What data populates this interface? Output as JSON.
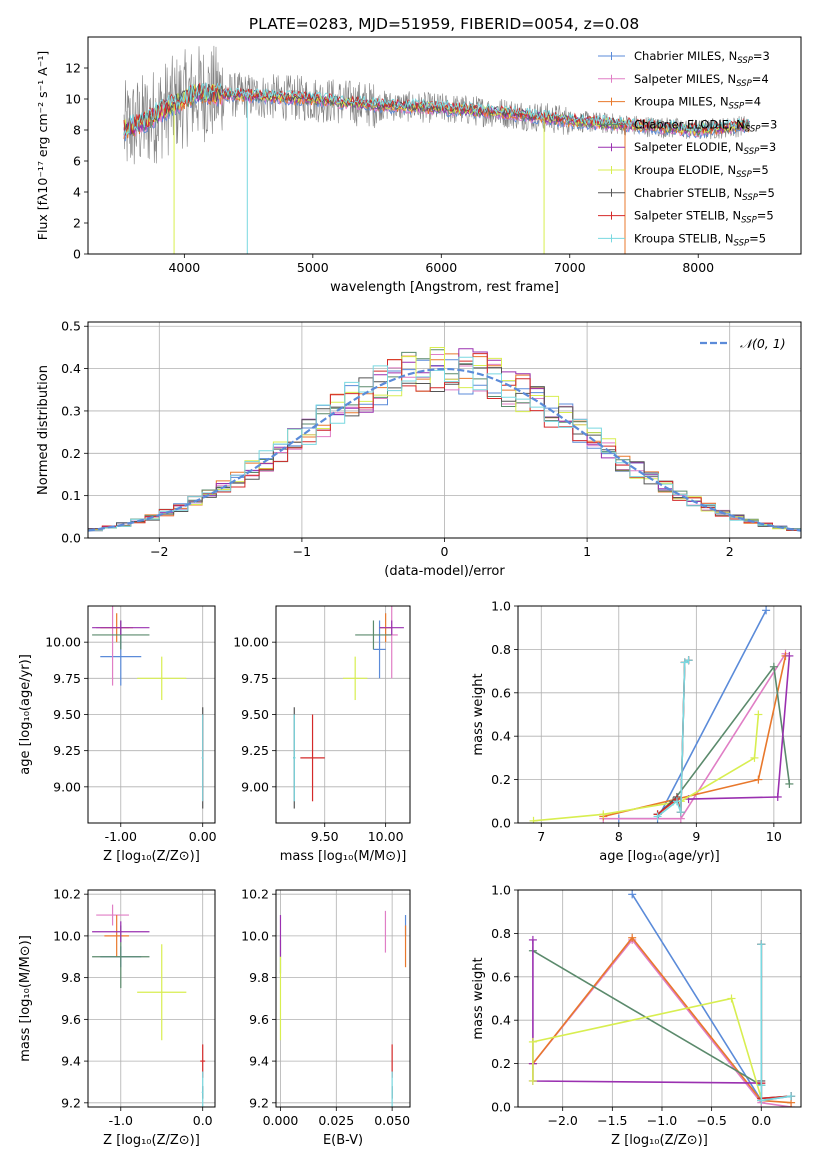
{
  "figure_title": "PLATE=0283, MJD=51959, FIBERID=0054, z=0.08",
  "colors": {
    "Chabrier MILES": "#5b8bd9",
    "Salpeter MILES": "#e07ec5",
    "Kroupa MILES": "#e8782c",
    "Chabrier ELODIE": "#5b8a6c",
    "Salpeter ELODIE": "#9a30b0",
    "Kroupa ELODIE": "#d8ee50",
    "Chabrier STELIB": "#555555",
    "Salpeter STELIB": "#d42a2a",
    "Kroupa STELIB": "#79d8e0",
    "spectrum": "#808080",
    "gaussian": "#5b8bd9"
  },
  "chart_data": [
    {
      "id": "spectrum",
      "type": "line",
      "xlabel": "wavelength [Angstrom, rest frame]",
      "ylabel": "Flux [fλ10⁻¹⁷ erg cm⁻² s⁻¹ A⁻¹]",
      "xlim": [
        3250,
        8800
      ],
      "ylim": [
        0,
        14
      ],
      "xticks": [
        4000,
        5000,
        6000,
        7000,
        8000
      ],
      "yticks": [
        0,
        2,
        4,
        6,
        8,
        10,
        12
      ],
      "grid": false,
      "legend_position": "top-right",
      "legend": [
        "Chabrier MILES, N_SSP=3",
        "Salpeter MILES, N_SSP=4",
        "Kroupa MILES, N_SSP=4",
        "Chabrier ELODIE, N_SSP=3",
        "Salpeter ELODIE, N_SSP=3",
        "Kroupa ELODIE, N_SSP=5",
        "Chabrier STELIB, N_SSP=5",
        "Salpeter STELIB, N_SSP=5",
        "Kroupa STELIB, N_SSP=5"
      ],
      "continuum": [
        [
          3530,
          8.0
        ],
        [
          3700,
          8.6
        ],
        [
          3900,
          9.6
        ],
        [
          4100,
          10.4
        ],
        [
          4500,
          10.2
        ],
        [
          5000,
          10.0
        ],
        [
          5500,
          9.6
        ],
        [
          6000,
          9.4
        ],
        [
          6500,
          9.1
        ],
        [
          7000,
          8.6
        ],
        [
          7500,
          8.3
        ],
        [
          8000,
          8.0
        ],
        [
          8400,
          8.3
        ]
      ],
      "dropouts": [
        {
          "model": "Kroupa ELODIE",
          "x": 3920
        },
        {
          "model": "Kroupa STELIB",
          "x": 4490
        },
        {
          "model": "Kroupa ELODIE",
          "x": 6800
        },
        {
          "model": "Kroupa MILES",
          "x": 7430
        }
      ]
    },
    {
      "id": "residuals",
      "type": "line",
      "xlabel": "(data-model)/error",
      "ylabel": "Normed distribution",
      "xlim": [
        -2.5,
        2.5
      ],
      "ylim": [
        0,
        0.51
      ],
      "xticks": [
        -2,
        -1,
        0,
        1,
        2
      ],
      "yticks": [
        0.0,
        0.1,
        0.2,
        0.3,
        0.4,
        0.5
      ],
      "grid": true,
      "legend_position": "top-right",
      "legend": [
        "𝒩(0, 1)"
      ],
      "bin_width": 0.1,
      "gaussian": {
        "mean": 0,
        "sigma": 1
      }
    },
    {
      "id": "age_vs_Z",
      "type": "scatter",
      "xlabel": "Z [log₁₀(Z/Z⊙)]",
      "ylabel": "age  [log₁₀(age/yr)]",
      "xlim": [
        -1.4,
        0.15
      ],
      "ylim": [
        8.75,
        10.25
      ],
      "xticks": [
        -1,
        0
      ],
      "yticks": [
        9.0,
        9.25,
        9.5,
        9.75,
        10.0
      ],
      "grid": true,
      "points": [
        {
          "model": "Chabrier MILES",
          "x": -1.0,
          "y": 9.9,
          "xerr": 0.25,
          "yerr": 0.2
        },
        {
          "model": "Salpeter MILES",
          "x": -1.1,
          "y": 10.1,
          "xerr": 0.2,
          "yerr": 0.4
        },
        {
          "model": "Kroupa MILES",
          "x": -1.05,
          "y": 10.1,
          "xerr": 0.2,
          "yerr": 0.1
        },
        {
          "model": "Chabrier ELODIE",
          "x": -1.0,
          "y": 10.05,
          "xerr": 0.35,
          "yerr": 0.1
        },
        {
          "model": "Salpeter ELODIE",
          "x": -1.0,
          "y": 10.1,
          "xerr": 0.35,
          "yerr": 0.05
        },
        {
          "model": "Kroupa ELODIE",
          "x": -0.5,
          "y": 9.75,
          "xerr": 0.3,
          "yerr": 0.15
        },
        {
          "model": "Chabrier STELIB",
          "x": 0.0,
          "y": 9.2,
          "xerr": 0.01,
          "yerr": 0.35
        },
        {
          "model": "Salpeter STELIB",
          "x": 0.0,
          "y": 9.2,
          "xerr": 0.01,
          "yerr": 0.3
        },
        {
          "model": "Kroupa STELIB",
          "x": 0.0,
          "y": 9.2,
          "xerr": 0.01,
          "yerr": 0.3
        }
      ]
    },
    {
      "id": "age_vs_mass",
      "type": "scatter",
      "xlabel": "mass [log₁₀(M/M⊙)]",
      "ylabel": "",
      "xlim": [
        9.1,
        10.2
      ],
      "ylim": [
        8.75,
        10.25
      ],
      "xticks": [
        9.5,
        10.0
      ],
      "yticks": [
        9.0,
        9.25,
        9.5,
        9.75,
        10.0
      ],
      "grid": true,
      "points": [
        {
          "model": "Chabrier MILES",
          "x": 9.95,
          "y": 9.95,
          "xerr": 0.05,
          "yerr": 0.2
        },
        {
          "model": "Salpeter MILES",
          "x": 10.05,
          "y": 10.05,
          "xerr": 0.05,
          "yerr": 0.3
        },
        {
          "model": "Kroupa MILES",
          "x": 10.0,
          "y": 10.1,
          "xerr": 0.05,
          "yerr": 0.1
        },
        {
          "model": "Chabrier ELODIE",
          "x": 9.9,
          "y": 10.05,
          "xerr": 0.15,
          "yerr": 0.1
        },
        {
          "model": "Salpeter ELODIE",
          "x": 10.05,
          "y": 10.1,
          "xerr": 0.1,
          "yerr": 0.05
        },
        {
          "model": "Kroupa ELODIE",
          "x": 9.75,
          "y": 9.75,
          "xerr": 0.1,
          "yerr": 0.15
        },
        {
          "model": "Chabrier STELIB",
          "x": 9.25,
          "y": 9.2,
          "xerr": 0.01,
          "yerr": 0.35
        },
        {
          "model": "Salpeter STELIB",
          "x": 9.4,
          "y": 9.2,
          "xerr": 0.1,
          "yerr": 0.3
        },
        {
          "model": "Kroupa STELIB",
          "x": 9.25,
          "y": 9.2,
          "xerr": 0.01,
          "yerr": 0.3
        }
      ]
    },
    {
      "id": "weight_vs_age",
      "type": "line",
      "xlabel": "age  [log₁₀(age/yr)]",
      "ylabel": "mass weight",
      "xlim": [
        6.7,
        10.35
      ],
      "ylim": [
        0,
        1.0
      ],
      "xticks": [
        7,
        8,
        9,
        10
      ],
      "yticks": [
        0.0,
        0.2,
        0.4,
        0.6,
        0.8,
        1.0
      ],
      "grid": true,
      "series": [
        {
          "model": "Chabrier MILES",
          "x": [
            8.0,
            8.5,
            9.9
          ],
          "y": [
            0.02,
            0.02,
            0.98
          ]
        },
        {
          "model": "Salpeter MILES",
          "x": [
            7.8,
            8.8,
            10.15
          ],
          "y": [
            0.02,
            0.02,
            0.78
          ]
        },
        {
          "model": "Kroupa MILES",
          "x": [
            7.8,
            9.8,
            10.15
          ],
          "y": [
            0.03,
            0.2,
            0.77
          ]
        },
        {
          "model": "Chabrier ELODIE",
          "x": [
            8.7,
            10.0,
            10.2
          ],
          "y": [
            0.1,
            0.72,
            0.18
          ]
        },
        {
          "model": "Salpeter ELODIE",
          "x": [
            8.9,
            10.05,
            10.2
          ],
          "y": [
            0.11,
            0.12,
            0.77
          ]
        },
        {
          "model": "Kroupa ELODIE",
          "x": [
            6.9,
            7.8,
            8.8,
            9.75,
            9.8
          ],
          "y": [
            0.01,
            0.04,
            0.1,
            0.3,
            0.5
          ]
        },
        {
          "model": "Chabrier STELIB",
          "x": [
            8.5,
            8.75,
            8.8,
            8.85,
            8.9
          ],
          "y": [
            0.04,
            0.12,
            0.05,
            0.74,
            0.75
          ]
        },
        {
          "model": "Salpeter STELIB",
          "x": [
            8.5,
            8.75,
            8.8,
            8.85,
            8.9
          ],
          "y": [
            0.04,
            0.11,
            0.05,
            0.74,
            0.75
          ]
        },
        {
          "model": "Kroupa STELIB",
          "x": [
            8.5,
            8.75,
            8.8,
            8.85,
            8.9
          ],
          "y": [
            0.03,
            0.1,
            0.05,
            0.74,
            0.75
          ]
        }
      ]
    },
    {
      "id": "mass_vs_Z",
      "type": "scatter",
      "xlabel": "Z [log₁₀(Z/Z⊙)]",
      "ylabel": "mass [log₁₀(M/M⊙)]",
      "xlim": [
        -1.4,
        0.15
      ],
      "ylim": [
        9.18,
        10.22
      ],
      "xticks": [
        -1,
        0
      ],
      "yticks": [
        9.2,
        9.4,
        9.6,
        9.8,
        10.0,
        10.2
      ],
      "grid": true,
      "points": [
        {
          "model": "Chabrier MILES",
          "x": -1.0,
          "y": 9.9,
          "xerr": 0.25,
          "yerr": 0.05
        },
        {
          "model": "Salpeter MILES",
          "x": -1.1,
          "y": 10.1,
          "xerr": 0.2,
          "yerr": 0.05
        },
        {
          "model": "Kroupa MILES",
          "x": -1.05,
          "y": 10.0,
          "xerr": 0.15,
          "yerr": 0.1
        },
        {
          "model": "Chabrier ELODIE",
          "x": -1.0,
          "y": 9.9,
          "xerr": 0.35,
          "yerr": 0.15
        },
        {
          "model": "Salpeter ELODIE",
          "x": -1.0,
          "y": 10.02,
          "xerr": 0.35,
          "yerr": 0.05
        },
        {
          "model": "Kroupa ELODIE",
          "x": -0.5,
          "y": 9.73,
          "xerr": 0.3,
          "yerr": 0.23
        },
        {
          "model": "Chabrier STELIB",
          "x": 0.0,
          "y": 9.25,
          "xerr": 0.01,
          "yerr": 0.03
        },
        {
          "model": "Salpeter STELIB",
          "x": 0.0,
          "y": 9.4,
          "xerr": 0.03,
          "yerr": 0.08
        },
        {
          "model": "Kroupa STELIB",
          "x": 0.0,
          "y": 9.25,
          "xerr": 0.01,
          "yerr": 0.1
        }
      ]
    },
    {
      "id": "mass_vs_ebv",
      "type": "scatter",
      "xlabel": "E(B-V)",
      "ylabel": "",
      "xlim": [
        -0.002,
        0.058
      ],
      "ylim": [
        9.18,
        10.22
      ],
      "xticks": [
        0.0,
        0.025,
        0.05
      ],
      "yticks": [
        9.2,
        9.4,
        9.6,
        9.8,
        10.0,
        10.2
      ],
      "grid": true,
      "points": [
        {
          "model": "Chabrier MILES",
          "x": 0.056,
          "y": 10.05,
          "xerr": 0,
          "yerr": 0.05
        },
        {
          "model": "Salpeter MILES",
          "x": 0.047,
          "y": 10.02,
          "xerr": 0,
          "yerr": 0.1
        },
        {
          "model": "Kroupa MILES",
          "x": 0.056,
          "y": 9.95,
          "xerr": 0,
          "yerr": 0.1
        },
        {
          "model": "Chabrier ELODIE",
          "x": 0.0,
          "y": 9.9,
          "xerr": 0,
          "yerr": 0.08
        },
        {
          "model": "Salpeter ELODIE",
          "x": 0.0,
          "y": 10.0,
          "xerr": 0,
          "yerr": 0.1
        },
        {
          "model": "Kroupa ELODIE",
          "x": 0.0,
          "y": 9.7,
          "xerr": 0,
          "yerr": 0.2
        },
        {
          "model": "Chabrier STELIB",
          "x": 0.05,
          "y": 9.25,
          "xerr": 0,
          "yerr": 0.03
        },
        {
          "model": "Salpeter STELIB",
          "x": 0.05,
          "y": 9.4,
          "xerr": 0,
          "yerr": 0.08
        },
        {
          "model": "Kroupa STELIB",
          "x": 0.05,
          "y": 9.25,
          "xerr": 0,
          "yerr": 0.1
        }
      ]
    },
    {
      "id": "weight_vs_Z",
      "type": "line",
      "xlabel": "Z [log₁₀(Z/Z⊙)]",
      "ylabel": "mass weight",
      "xlim": [
        -2.45,
        0.4
      ],
      "ylim": [
        0,
        1.0
      ],
      "xticks": [
        -2.0,
        -1.5,
        -1.0,
        -0.5,
        0.0
      ],
      "yticks": [
        0.0,
        0.2,
        0.4,
        0.6,
        0.8,
        1.0
      ],
      "grid": true,
      "series": [
        {
          "model": "Chabrier MILES",
          "x": [
            -1.3,
            0.0,
            0.3
          ],
          "y": [
            0.98,
            0.03,
            0.05
          ]
        },
        {
          "model": "Salpeter MILES",
          "x": [
            -2.3,
            -1.3,
            0.0,
            0.3
          ],
          "y": [
            0.2,
            0.77,
            0.02,
            0.0
          ]
        },
        {
          "model": "Kroupa MILES",
          "x": [
            -2.3,
            -1.3,
            0.0,
            0.3
          ],
          "y": [
            0.2,
            0.78,
            0.03,
            0.02
          ]
        },
        {
          "model": "Chabrier ELODIE",
          "x": [
            -2.3,
            0.0
          ],
          "y": [
            0.72,
            0.1
          ]
        },
        {
          "model": "Salpeter ELODIE",
          "x": [
            -2.3,
            -2.3,
            -2.3,
            0.0
          ],
          "y": [
            0.77,
            0.2,
            0.12,
            0.11
          ]
        },
        {
          "model": "Kroupa ELODIE",
          "x": [
            -2.3,
            -2.3,
            -0.3,
            0.0
          ],
          "y": [
            0.12,
            0.3,
            0.5,
            0.04
          ]
        },
        {
          "model": "Chabrier STELIB",
          "x": [
            0.0,
            0.0,
            0.0,
            0.3
          ],
          "y": [
            0.75,
            0.12,
            0.04,
            0.05
          ]
        },
        {
          "model": "Salpeter STELIB",
          "x": [
            0.0,
            0.0,
            0.0,
            0.3
          ],
          "y": [
            0.75,
            0.11,
            0.04,
            0.05
          ]
        },
        {
          "model": "Kroupa STELIB",
          "x": [
            0.0,
            0.0,
            0.0,
            0.3
          ],
          "y": [
            0.75,
            0.1,
            0.03,
            0.05
          ]
        }
      ]
    }
  ]
}
